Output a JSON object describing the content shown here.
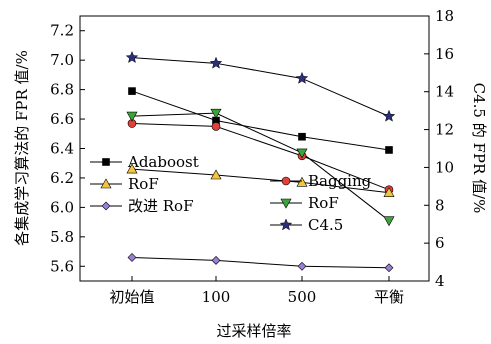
{
  "chart_data": {
    "type": "line",
    "categories": [
      "初始值",
      "100",
      "500",
      "平衡"
    ],
    "xlabel": "过采样倍率",
    "ylabel": "各集成学习算法的 FPR 值/%",
    "y2label": "C4.5 的 FPR 值/%",
    "ylim": [
      5.5,
      7.3
    ],
    "yticks": [
      "5.6",
      "5.8",
      "6.0",
      "6.2",
      "6.4",
      "6.6",
      "6.8",
      "7.0",
      "7.2"
    ],
    "y2lim": [
      4,
      18
    ],
    "y2ticks": [
      "4",
      "6",
      "8",
      "10",
      "12",
      "14",
      "16",
      "18"
    ],
    "grid": false,
    "legend_position": "lower-left inside",
    "series": [
      {
        "name": "Adaboost",
        "axis": "left",
        "marker": "square",
        "color": "#000000",
        "values": [
          6.79,
          6.59,
          6.48,
          6.39
        ]
      },
      {
        "name": "Bagging",
        "axis": "left",
        "marker": "circle",
        "color": "#e2403a",
        "values": [
          6.57,
          6.55,
          6.35,
          6.12
        ]
      },
      {
        "name": "RoF",
        "axis": "left",
        "marker": "triangle-up",
        "color": "#f2c53d",
        "values": [
          6.26,
          6.22,
          6.17,
          6.1
        ]
      },
      {
        "name": "RoF",
        "axis": "left",
        "marker": "triangle-down",
        "color": "#3aa63a",
        "values": [
          6.62,
          6.64,
          6.37,
          5.91
        ]
      },
      {
        "name": "改进 RoF",
        "axis": "left",
        "marker": "diamond",
        "color": "#9a7fd6",
        "values": [
          5.66,
          5.64,
          5.6,
          5.59
        ]
      },
      {
        "name": "C4.5",
        "axis": "right",
        "marker": "star",
        "color": "#2b2f7a",
        "values": [
          15.8,
          15.5,
          14.7,
          12.7
        ]
      }
    ]
  }
}
